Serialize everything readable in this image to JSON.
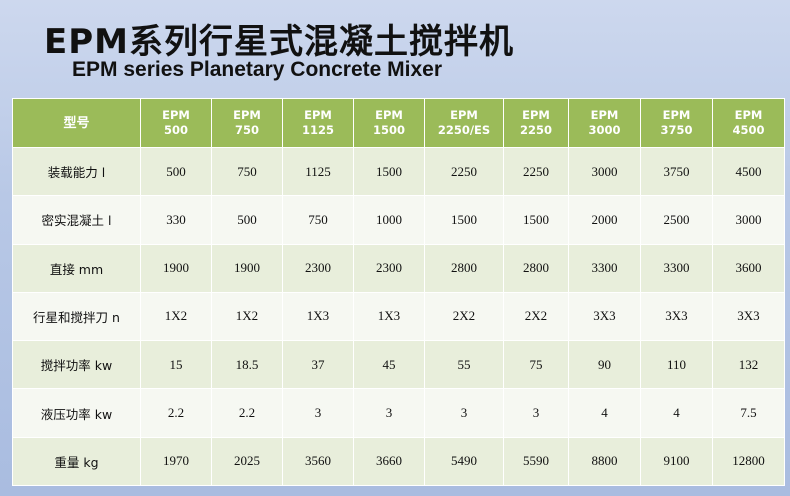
{
  "title_cn": "EPM系列行星式混凝土搅拌机",
  "title_en": "EPM series Planetary Concrete Mixer",
  "table": {
    "header_label": "型号",
    "models": [
      [
        "EPM",
        "500"
      ],
      [
        "EPM",
        "750"
      ],
      [
        "EPM",
        "1125"
      ],
      [
        "EPM",
        "1500"
      ],
      [
        "EPM",
        "2250/ES"
      ],
      [
        "EPM",
        "2250"
      ],
      [
        "EPM",
        "3000"
      ],
      [
        "EPM",
        "3750"
      ],
      [
        "EPM",
        "4500"
      ]
    ],
    "rows": [
      {
        "label": "装载能力 l",
        "values": [
          "500",
          "750",
          "1125",
          "1500",
          "2250",
          "2250",
          "3000",
          "3750",
          "4500"
        ]
      },
      {
        "label": "密实混凝土 l",
        "values": [
          "330",
          "500",
          "750",
          "1000",
          "1500",
          "1500",
          "2000",
          "2500",
          "3000"
        ]
      },
      {
        "label": "直接 mm",
        "values": [
          "1900",
          "1900",
          "2300",
          "2300",
          "2800",
          "2800",
          "3300",
          "3300",
          "3600"
        ]
      },
      {
        "label": "行星和搅拌刀 n",
        "values": [
          "1X2",
          "1X2",
          "1X3",
          "1X3",
          "2X2",
          "2X2",
          "3X3",
          "3X3",
          "3X3"
        ]
      },
      {
        "label": "搅拌功率 kw",
        "values": [
          "15",
          "18.5",
          "37",
          "45",
          "55",
          "75",
          "90",
          "110",
          "132"
        ]
      },
      {
        "label": "液压功率 kw",
        "values": [
          "2.2",
          "2.2",
          "3",
          "3",
          "3",
          "3",
          "4",
          "4",
          "7.5"
        ]
      },
      {
        "label": "重量 kg",
        "values": [
          "1970",
          "2025",
          "3560",
          "3660",
          "5490",
          "5590",
          "8800",
          "9100",
          "12800"
        ]
      }
    ]
  }
}
